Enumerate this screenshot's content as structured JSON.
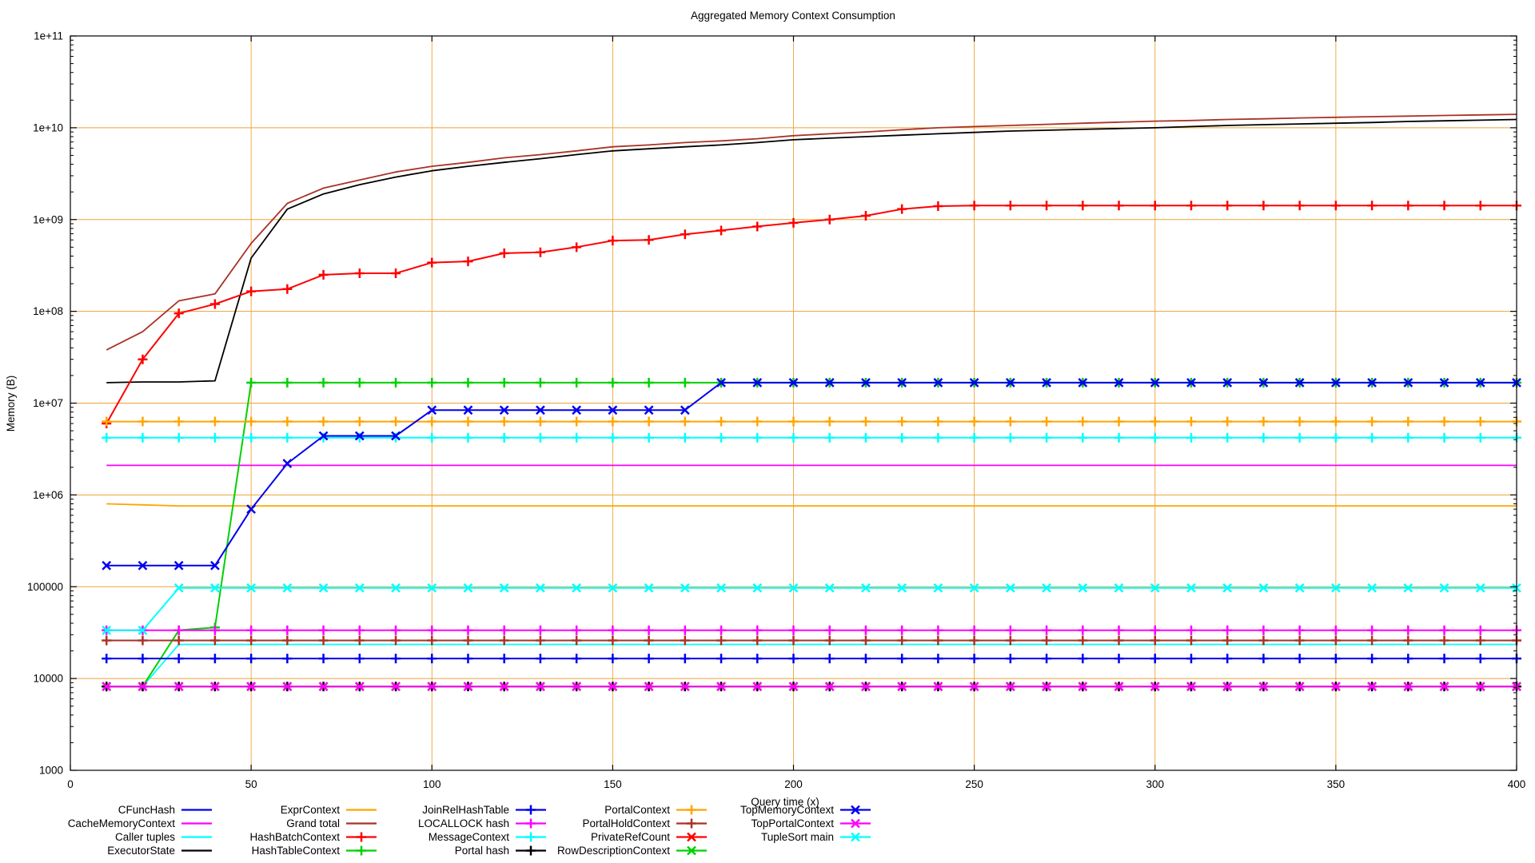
{
  "chart_data": {
    "type": "line",
    "title": "Aggregated Memory Context Consumption",
    "xlabel": "Query time (x)",
    "ylabel": "Memory (B)",
    "x_axis": {
      "min": 0,
      "max": 400,
      "ticks": [
        0,
        50,
        100,
        150,
        200,
        250,
        300,
        350,
        400
      ],
      "tick_labels": [
        "0",
        "50",
        "100",
        "150",
        "200",
        "250",
        "300",
        "350",
        "400"
      ]
    },
    "y_axis": {
      "scale": "log",
      "min": 1000,
      "max": 100000000000,
      "tick_labels": [
        "1000",
        "10000",
        "100000",
        "1e+06",
        "1e+07",
        "1e+08",
        "1e+09",
        "1e+10",
        "1e+11"
      ]
    },
    "grid": {
      "show": true,
      "color": "#eda338"
    },
    "legend_position": "bottom-center",
    "x": [
      10,
      20,
      30,
      40,
      50,
      60,
      70,
      80,
      90,
      100,
      110,
      120,
      130,
      140,
      150,
      160,
      170,
      180,
      190,
      200,
      210,
      220,
      230,
      240,
      250,
      260,
      270,
      280,
      290,
      300,
      310,
      320,
      330,
      340,
      350,
      360,
      370,
      380,
      390,
      400
    ],
    "values_pad": "repeat-last",
    "series": [
      {
        "name": "CFuncHash",
        "color": "#0000ee",
        "marker": "none",
        "values": [
          8192
        ]
      },
      {
        "name": "CacheMemoryContext",
        "color": "#ff00ff",
        "marker": "none",
        "values": [
          2100000
        ]
      },
      {
        "name": "Caller tuples",
        "color": "#00ffff",
        "marker": "none",
        "values": [
          8192,
          8192,
          23500
        ]
      },
      {
        "name": "ExecutorState",
        "color": "#000000",
        "marker": "none",
        "values": [
          16700000,
          17000000,
          17000000,
          17500000,
          380000000,
          1300000000,
          1900000000,
          2400000000,
          2900000000,
          3400000000,
          3800000000,
          4200000000,
          4600000000,
          5100000000,
          5600000000,
          5900000000,
          6200000000,
          6500000000,
          6900000000,
          7400000000,
          7700000000,
          8000000000,
          8300000000,
          8600000000,
          8900000000,
          9200000000,
          9400000000,
          9600000000,
          9800000000,
          10000000000,
          10300000000,
          10600000000,
          10800000000,
          11000000000,
          11200000000,
          11400000000,
          11700000000,
          11900000000,
          12100000000,
          12300000000
        ]
      },
      {
        "name": "ExprContext",
        "color": "#ffa500",
        "marker": "none",
        "values": [
          800000,
          780000,
          760000
        ]
      },
      {
        "name": "Grand total",
        "color": "#a93226",
        "marker": "none",
        "values": [
          38000000,
          60000000,
          130000000,
          155000000,
          550000000,
          1500000000,
          2200000000,
          2700000000,
          3300000000,
          3800000000,
          4200000000,
          4700000000,
          5100000000,
          5600000000,
          6200000000,
          6500000000,
          6900000000,
          7200000000,
          7600000000,
          8200000000,
          8600000000,
          9000000000,
          9500000000,
          10000000000,
          10300000000,
          10600000000,
          10900000000,
          11200000000,
          11500000000,
          11800000000,
          12000000000,
          12300000000,
          12500000000,
          12800000000,
          13000000000,
          13200000000,
          13400000000,
          13600000000,
          13800000000,
          14000000000
        ]
      },
      {
        "name": "HashBatchContext",
        "color": "#ff0000",
        "marker": "plus",
        "values": [
          6000000,
          30000000,
          95000000,
          120000000,
          165000000,
          175000000,
          250000000,
          260000000,
          260000000,
          340000000,
          350000000,
          430000000,
          440000000,
          500000000,
          590000000,
          600000000,
          690000000,
          760000000,
          840000000,
          920000000,
          1000000000,
          1100000000,
          1300000000,
          1400000000,
          1420000000
        ]
      },
      {
        "name": "HashTableContext",
        "color": "#00d000",
        "marker": "plus",
        "values": [
          8192,
          8192,
          33500,
          36000,
          16700000
        ]
      },
      {
        "name": "JoinRelHashTable",
        "color": "#0000ee",
        "marker": "plus",
        "values": [
          16500
        ]
      },
      {
        "name": "LOCALLOCK hash",
        "color": "#ff00ff",
        "marker": "plus",
        "values": [
          33500
        ]
      },
      {
        "name": "MessageContext",
        "color": "#00ffff",
        "marker": "plus",
        "values": [
          4200000
        ]
      },
      {
        "name": "Portal hash",
        "color": "#000000",
        "marker": "plus",
        "values": [
          8192
        ]
      },
      {
        "name": "PortalContext",
        "color": "#ffa500",
        "marker": "plus",
        "values": [
          6300000
        ]
      },
      {
        "name": "PortalHoldContext",
        "color": "#a93226",
        "marker": "plus",
        "values": [
          26000
        ]
      },
      {
        "name": "PrivateRefCount",
        "color": "#ff0000",
        "marker": "cross",
        "values": [
          8192
        ]
      },
      {
        "name": "RowDescriptionContext",
        "color": "#00d000",
        "marker": "cross",
        "values": [
          8192
        ]
      },
      {
        "name": "TopMemoryContext",
        "color": "#0000ee",
        "marker": "cross",
        "values": [
          170000,
          170000,
          170000,
          170000,
          700000,
          2200000,
          4400000,
          4400000,
          4400000,
          8400000,
          8400000,
          8400000,
          8400000,
          8400000,
          8400000,
          8400000,
          8400000,
          16700000
        ]
      },
      {
        "name": "TopPortalContext",
        "color": "#ff00ff",
        "marker": "cross",
        "values": [
          8192
        ]
      },
      {
        "name": "TupleSort main",
        "color": "#00ffff",
        "marker": "cross",
        "values": [
          33500,
          33500,
          97000
        ]
      }
    ],
    "legend_columns": [
      [
        "CFuncHash",
        "CacheMemoryContext",
        "Caller tuples",
        "ExecutorState"
      ],
      [
        "ExprContext",
        "Grand total",
        "HashBatchContext",
        "HashTableContext"
      ],
      [
        "JoinRelHashTable",
        "LOCALLOCK hash",
        "MessageContext",
        "Portal hash"
      ],
      [
        "PortalContext",
        "PortalHoldContext",
        "PrivateRefCount",
        "RowDescriptionContext"
      ],
      [
        "TopMemoryContext",
        "TopPortalContext",
        "TupleSort main"
      ]
    ]
  }
}
